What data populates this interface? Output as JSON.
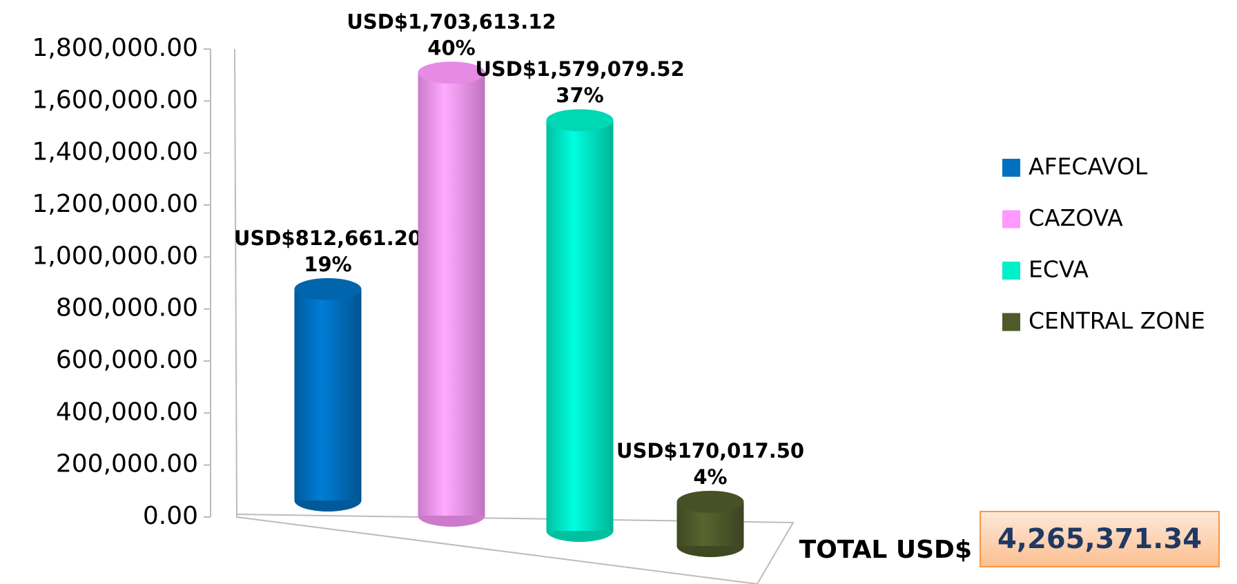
{
  "chart_data": {
    "type": "bar",
    "categories": [
      "AFECAVOL",
      "CAZOVA",
      "ECVA",
      "CENTRAL ZONE"
    ],
    "values": [
      812661.2,
      1703613.12,
      1579079.52,
      170017.5
    ],
    "value_labels": [
      "USD$812,661.20",
      "USD$1,703,613.12",
      "USD$1,579,079.52",
      "USD$170,017.50"
    ],
    "percentages": [
      19,
      40,
      37,
      4
    ],
    "percentage_labels": [
      "19%",
      "40%",
      "37%",
      "4%"
    ],
    "colors": [
      "#0070c0",
      "#ff99ff",
      "#00f0c8",
      "#4f5a2a"
    ],
    "ylim": [
      0,
      1800000
    ],
    "yticks": [
      {
        "value": 0,
        "label": "0.00"
      },
      {
        "value": 200000,
        "label": "200,000.00"
      },
      {
        "value": 400000,
        "label": "400,000.00"
      },
      {
        "value": 600000,
        "label": "600,000.00"
      },
      {
        "value": 800000,
        "label": "800,000.00"
      },
      {
        "value": 1000000,
        "label": "1,000,000.00"
      },
      {
        "value": 1200000,
        "label": "1,200,000.00"
      },
      {
        "value": 1400000,
        "label": "1,400,000.00"
      },
      {
        "value": 1600000,
        "label": "1,600,000.00"
      },
      {
        "value": 1800000,
        "label": "1,800,000.00"
      }
    ],
    "legend": "right",
    "total_label": "TOTAL USD$",
    "total": {
      "value": 4265371.34,
      "label": "4,265,371.34"
    }
  }
}
